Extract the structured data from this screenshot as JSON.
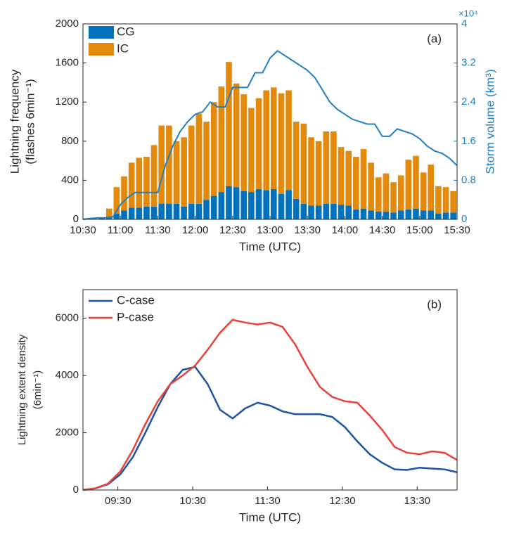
{
  "chart_data": [
    {
      "type": "bar",
      "stacked": true,
      "annotation": "(a)",
      "xlabel": "Time (UTC)",
      "ylabel": [
        "Lightning frequency",
        "(flashes 6min⁻¹)"
      ],
      "y2label": "Storm volume (km³)",
      "y2_exponent_label": "×10⁴",
      "xlim": [
        630,
        930
      ],
      "xticks": [
        {
          "value": 630,
          "label": "10:30"
        },
        {
          "value": 660,
          "label": "11:00"
        },
        {
          "value": 690,
          "label": "11:30"
        },
        {
          "value": 720,
          "label": "12:00"
        },
        {
          "value": 750,
          "label": "12:30"
        },
        {
          "value": 780,
          "label": "13:00"
        },
        {
          "value": 810,
          "label": "13:30"
        },
        {
          "value": 840,
          "label": "14:00"
        },
        {
          "value": 870,
          "label": "14:30"
        },
        {
          "value": 900,
          "label": "15:00"
        },
        {
          "value": 930,
          "label": "15:30"
        }
      ],
      "ylim": [
        0,
        2000
      ],
      "yticks": [
        0,
        400,
        800,
        1200,
        1600,
        2000
      ],
      "y2lim": [
        0,
        4
      ],
      "y2ticks": [
        0,
        0.8,
        1.6,
        2.4,
        3.2,
        4
      ],
      "legend": "upper left",
      "x": [
        630,
        636,
        642,
        648,
        654,
        660,
        666,
        672,
        678,
        684,
        690,
        696,
        702,
        708,
        714,
        720,
        726,
        732,
        738,
        744,
        750,
        756,
        762,
        768,
        774,
        780,
        786,
        792,
        798,
        804,
        810,
        816,
        822,
        828,
        834,
        840,
        846,
        852,
        858,
        864,
        870,
        876,
        882,
        888,
        894,
        900,
        906,
        912,
        918,
        924
      ],
      "series": [
        {
          "name": "CG",
          "color": "#0072bd",
          "values": [
            2,
            5,
            10,
            20,
            60,
            90,
            120,
            120,
            130,
            130,
            160,
            160,
            160,
            130,
            160,
            160,
            200,
            240,
            280,
            340,
            330,
            290,
            280,
            310,
            300,
            310,
            260,
            300,
            210,
            160,
            140,
            140,
            160,
            160,
            150,
            140,
            100,
            110,
            90,
            80,
            80,
            70,
            90,
            100,
            110,
            90,
            90,
            60,
            70,
            70
          ]
        },
        {
          "name": "IC",
          "color": "#e38a0c",
          "values": [
            3,
            5,
            10,
            90,
            270,
            350,
            460,
            510,
            510,
            630,
            800,
            800,
            640,
            710,
            800,
            920,
            800,
            960,
            1080,
            1270,
            1060,
            990,
            860,
            930,
            1020,
            1040,
            1030,
            1020,
            790,
            820,
            700,
            660,
            740,
            740,
            590,
            560,
            540,
            610,
            490,
            350,
            390,
            310,
            360,
            510,
            540,
            390,
            470,
            280,
            260,
            220
          ]
        }
      ],
      "line": {
        "axis": "y2",
        "color": "#1f80c4",
        "x": [
          630,
          636,
          642,
          648,
          654,
          660,
          666,
          672,
          678,
          684,
          690,
          696,
          702,
          708,
          714,
          720,
          726,
          732,
          738,
          744,
          750,
          756,
          762,
          768,
          774,
          780,
          786,
          792,
          798,
          804,
          810,
          816,
          822,
          828,
          834,
          840,
          846,
          852,
          858,
          864,
          870,
          876,
          882,
          888,
          894,
          900,
          906,
          912,
          918,
          924,
          930
        ],
        "values": [
          0,
          0.02,
          0.03,
          0.03,
          0.05,
          0.3,
          0.45,
          0.55,
          0.55,
          0.55,
          0.55,
          1.1,
          1.5,
          1.8,
          2.0,
          2.15,
          2.2,
          2.4,
          2.3,
          2.3,
          2.7,
          2.7,
          2.7,
          3.0,
          3.0,
          3.3,
          3.45,
          3.35,
          3.25,
          3.15,
          3.05,
          2.9,
          2.65,
          2.4,
          2.25,
          2.15,
          2.05,
          2.0,
          1.95,
          1.95,
          1.7,
          1.7,
          1.85,
          1.8,
          1.75,
          1.65,
          1.5,
          1.4,
          1.35,
          1.25,
          1.1
        ]
      }
    },
    {
      "type": "line",
      "annotation": "(b)",
      "xlabel": "Time (UTC)",
      "ylabel": [
        "Lightning extent density",
        "(6min⁻¹)"
      ],
      "xlim": [
        542,
        842
      ],
      "xticks": [
        {
          "value": 570,
          "label": "09:30"
        },
        {
          "value": 630,
          "label": "10:30"
        },
        {
          "value": 690,
          "label": "11:30"
        },
        {
          "value": 750,
          "label": "12:30"
        },
        {
          "value": 810,
          "label": "13:30"
        }
      ],
      "ylim": [
        0,
        7000
      ],
      "yticks": [
        0,
        2000,
        4000,
        6000
      ],
      "legend": "upper left",
      "x": [
        542,
        552,
        562,
        572,
        582,
        592,
        602,
        612,
        622,
        632,
        642,
        652,
        662,
        672,
        682,
        692,
        702,
        712,
        722,
        732,
        742,
        752,
        762,
        772,
        782,
        792,
        802,
        812,
        822,
        832,
        842
      ],
      "series": [
        {
          "name": "C-case",
          "color": "#1d53a3",
          "values": [
            0,
            60,
            200,
            550,
            1150,
            2000,
            2900,
            3700,
            4200,
            4300,
            3700,
            2800,
            2500,
            2850,
            3050,
            2950,
            2750,
            2650,
            2650,
            2650,
            2550,
            2200,
            1700,
            1250,
            950,
            720,
            700,
            780,
            750,
            720,
            620
          ]
        },
        {
          "name": "P-case",
          "color": "#e8413a",
          "values": [
            0,
            60,
            220,
            650,
            1400,
            2300,
            3100,
            3700,
            4000,
            4350,
            4900,
            5500,
            5950,
            5850,
            5780,
            5850,
            5700,
            5100,
            4300,
            3600,
            3250,
            3100,
            3050,
            2600,
            2100,
            1500,
            1300,
            1250,
            1350,
            1300,
            1050
          ]
        }
      ]
    }
  ]
}
